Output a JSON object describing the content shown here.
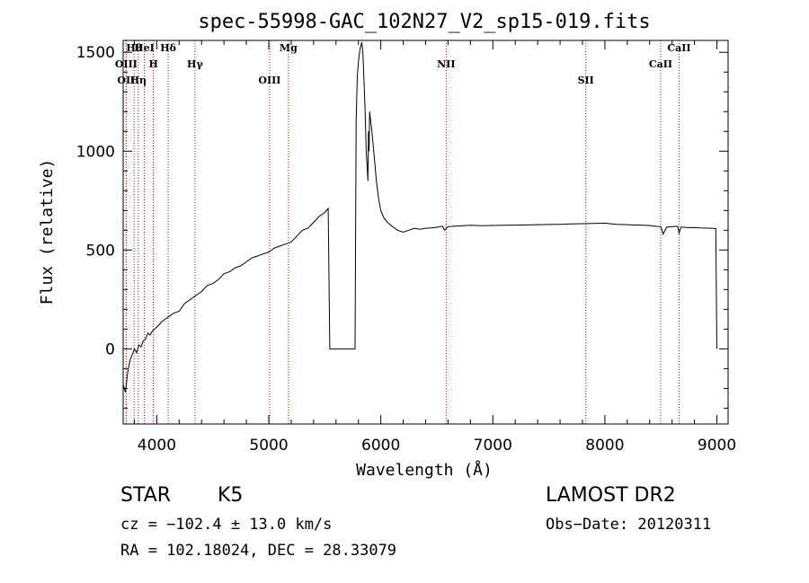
{
  "chart_data": {
    "type": "line",
    "title": "spec-55998-GAC_102N27_V2_sp15-019.fits",
    "xlabel": "Wavelength (Å)",
    "ylabel": "Flux (relative)",
    "xlim": [
      3700,
      9100
    ],
    "ylim": [
      -380,
      1560
    ],
    "xticks": [
      4000,
      5000,
      6000,
      7000,
      8000,
      9000
    ],
    "yticks": [
      0,
      500,
      1000,
      1500
    ],
    "grid": false,
    "series": [
      {
        "x": [
          3700,
          3720,
          3740,
          3760,
          3780,
          3800,
          3820,
          3840,
          3860,
          3880,
          3900,
          3920,
          3940,
          3960,
          3980,
          4000,
          4050,
          4100,
          4150,
          4200,
          4250,
          4300,
          4350,
          4400,
          4450,
          4500,
          4550,
          4600,
          4650,
          4700,
          4750,
          4800,
          4850,
          4900,
          4950,
          5000,
          5050,
          5100,
          5150,
          5200,
          5250,
          5300,
          5350,
          5400,
          5450,
          5500,
          5530,
          5545,
          5560,
          5580,
          5600,
          5650,
          5700,
          5750,
          5770,
          5780,
          5790,
          5800,
          5810,
          5820,
          5830,
          5840,
          5850,
          5860,
          5870,
          5880,
          5885,
          5890,
          5895,
          5900,
          5910,
          5920,
          5940,
          5960,
          5980,
          6000,
          6030,
          6060,
          6100,
          6150,
          6200,
          6250,
          6300,
          6350,
          6400,
          6450,
          6500,
          6550,
          6570,
          6600,
          6650,
          6700,
          6800,
          6900,
          7000,
          7100,
          7200,
          7300,
          7400,
          7500,
          7600,
          7700,
          7800,
          7900,
          8000,
          8100,
          8200,
          8300,
          8400,
          8450,
          8500,
          8520,
          8550,
          8600,
          8650,
          8662,
          8680,
          8700,
          8750,
          8800,
          8850,
          8900,
          8950,
          8990,
          9000
        ],
        "y": [
          -180,
          -220,
          -120,
          -60,
          -30,
          0,
          -20,
          20,
          10,
          40,
          50,
          80,
          70,
          90,
          100,
          110,
          140,
          160,
          180,
          190,
          230,
          250,
          270,
          290,
          320,
          330,
          350,
          380,
          390,
          410,
          420,
          440,
          460,
          470,
          480,
          490,
          510,
          520,
          530,
          540,
          570,
          600,
          610,
          640,
          670,
          690,
          710,
          0,
          0,
          0,
          0,
          0,
          0,
          0,
          0,
          1150,
          1380,
          1450,
          1500,
          1530,
          1550,
          1500,
          1350,
          1200,
          1000,
          900,
          850,
          1100,
          1000,
          1200,
          1150,
          1100,
          980,
          850,
          760,
          700,
          660,
          640,
          620,
          600,
          590,
          600,
          610,
          605,
          610,
          612,
          615,
          620,
          600,
          618,
          620,
          622,
          625,
          623,
          624,
          625,
          626,
          627,
          628,
          629,
          630,
          632,
          633,
          634,
          636,
          630,
          628,
          626,
          624,
          620,
          618,
          580,
          615,
          618,
          620,
          585,
          616,
          615,
          613,
          614,
          612,
          611,
          610,
          608,
          0
        ]
      }
    ],
    "lines": [
      {
        "name": "Hθ",
        "wavelength": 3798
      },
      {
        "name": "H",
        "wavelength": 3970
      },
      {
        "name": "OII",
        "wavelength": 3727
      },
      {
        "name": "HeI",
        "wavelength": 3889
      },
      {
        "name": "OIII",
        "wavelength": 3727
      },
      {
        "name": "Hη",
        "wavelength": 3835
      },
      {
        "name": "Hδ",
        "wavelength": 4102
      },
      {
        "name": "Hγ",
        "wavelength": 4341
      },
      {
        "name": "OIII",
        "wavelength": 5007
      },
      {
        "name": "Mg",
        "wavelength": 5175
      },
      {
        "name": "NII",
        "wavelength": 6583
      },
      {
        "name": "SII",
        "wavelength": 7830
      },
      {
        "name": "CaII",
        "wavelength": 8662
      },
      {
        "name": "CaII",
        "wavelength": 8498
      }
    ],
    "line_color": "#cc0000"
  },
  "info": {
    "object_class": "STAR",
    "subclass": "K5",
    "survey": "LAMOST DR2",
    "cz": "cz = −102.4 ± 13.0 km/s",
    "obs_date": "Obs−Date: 20120311",
    "coords": "RA = 102.18024, DEC =  28.33079"
  }
}
